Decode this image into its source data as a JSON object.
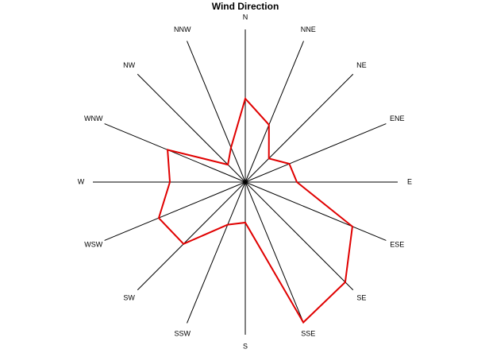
{
  "chart_data": {
    "type": "radar",
    "title": "Wind Direction",
    "categories": [
      "N",
      "NNE",
      "NE",
      "ENE",
      "E",
      "ESE",
      "SE",
      "SSE",
      "S",
      "SSW",
      "SW",
      "WSW",
      "W",
      "WNW",
      "NW",
      "NNW"
    ],
    "values": [
      105,
      78,
      42,
      60,
      65,
      146,
      178,
      191,
      51,
      58,
      110,
      118,
      95,
      106,
      31,
      47
    ],
    "color": "#e00000",
    "rlim": [
      0,
      192
    ]
  }
}
